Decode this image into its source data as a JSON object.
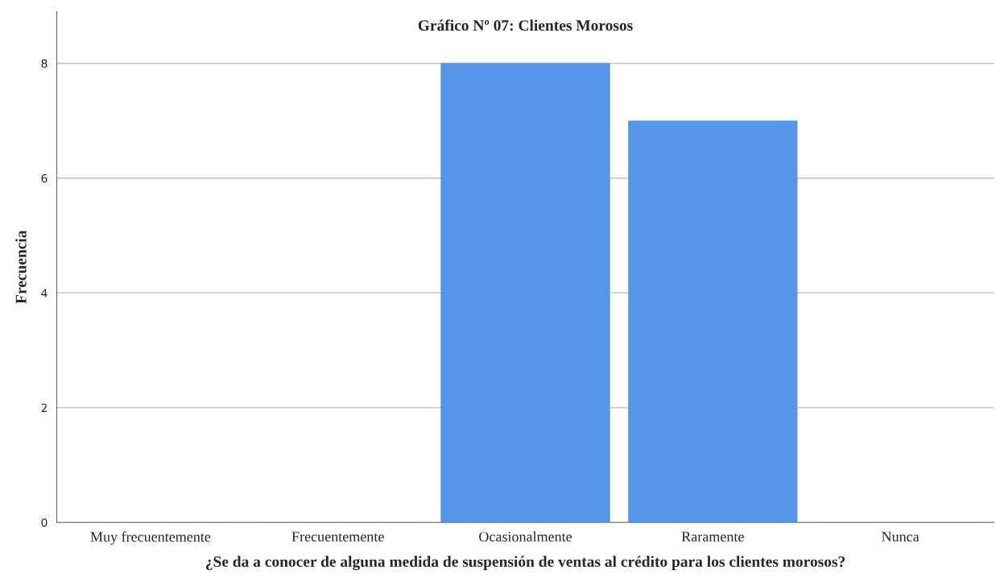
{
  "chart_data": {
    "type": "bar",
    "title": "Gráfico Nº 07: Clientes Morosos",
    "xlabel": "¿Se da a conocer de alguna medida de suspensión de ventas al crédito para los clientes morosos?",
    "ylabel": "Frecuencia",
    "categories": [
      "Muy frecuentemente",
      "Frecuentemente",
      "Ocasionalmente",
      "Raramente",
      "Nunca"
    ],
    "values": [
      0,
      0,
      8,
      7,
      0
    ],
    "color": "#5596e6",
    "ylim": [
      0,
      8.9
    ],
    "yticks": [
      0,
      2,
      4,
      6,
      8
    ],
    "grid": "y"
  }
}
